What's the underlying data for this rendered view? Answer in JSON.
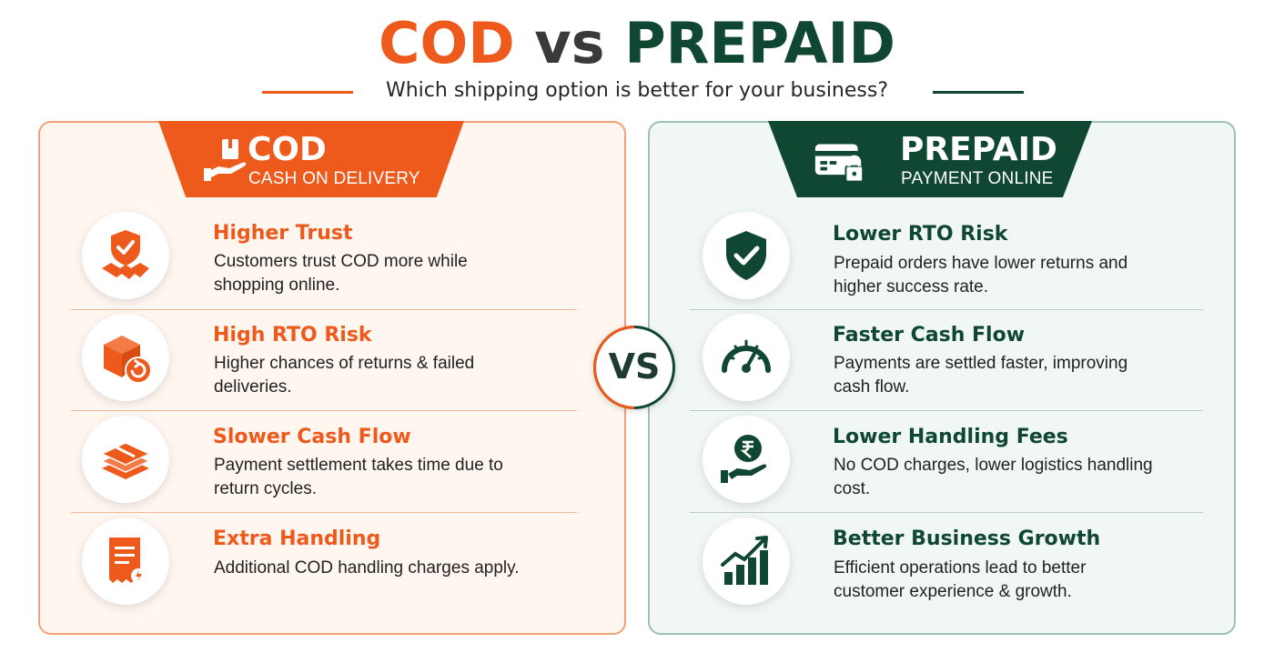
{
  "title": {
    "cod": "COD",
    "vs": "vs",
    "prepaid": "PREPAID"
  },
  "subtitle": "Which shipping option is better for your business?",
  "colors": {
    "cod": "#ee5a1c",
    "prepaid": "#0f4733"
  },
  "vs_badge": "VS",
  "cod": {
    "tab_title": "COD",
    "tab_subtitle": "CASH ON DELIVERY",
    "tab_icon": "cash-on-delivery-icon",
    "items": [
      {
        "icon": "shield-handshake-icon",
        "title": "Higher Trust",
        "desc": "Customers trust COD more while shopping online."
      },
      {
        "icon": "box-return-icon",
        "title": "High RTO Risk",
        "desc": "Higher chances of returns & failed deliveries."
      },
      {
        "icon": "cash-stack-icon",
        "title": "Slower Cash Flow",
        "desc": "Payment settlement takes time due to return cycles."
      },
      {
        "icon": "receipt-fee-icon",
        "title": "Extra Handling",
        "desc": "Additional COD handling charges apply."
      }
    ]
  },
  "prepaid": {
    "tab_title": "PREPAID",
    "tab_subtitle": "PAYMENT ONLINE",
    "tab_icon": "card-lock-icon",
    "items": [
      {
        "icon": "shield-check-icon",
        "title": "Lower RTO Risk",
        "desc": "Prepaid orders have lower returns and higher success rate."
      },
      {
        "icon": "speedometer-icon",
        "title": "Faster Cash Flow",
        "desc": "Payments are settled faster, improving cash flow."
      },
      {
        "icon": "rupee-hand-icon",
        "title": "Lower Handling Fees",
        "desc": "No COD charges, lower logistics handling cost."
      },
      {
        "icon": "growth-chart-icon",
        "title": "Better Business Growth",
        "desc": "Efficient operations lead to better customer experience & growth."
      }
    ]
  }
}
